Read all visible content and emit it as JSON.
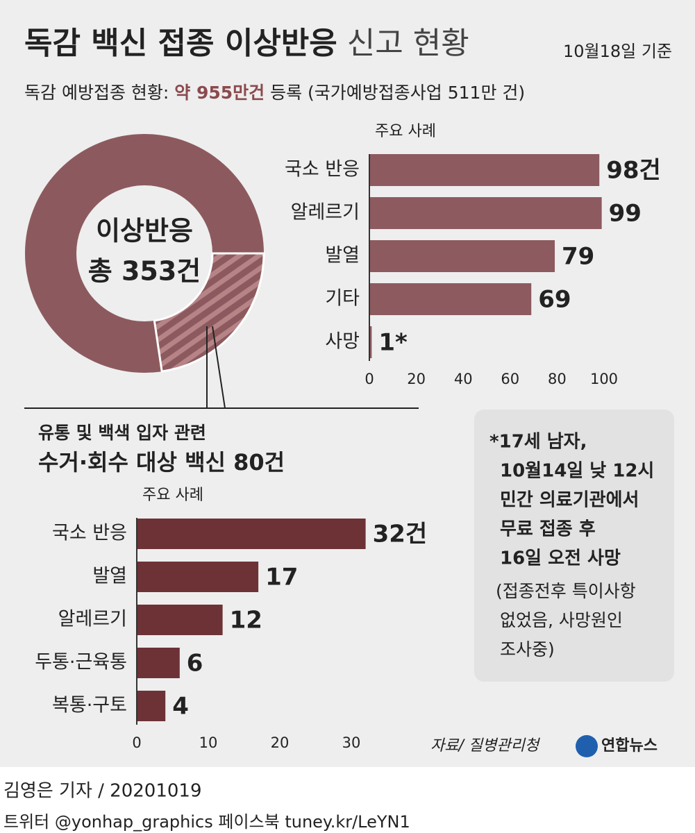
{
  "header": {
    "title_bold": "독감 백신 접종 이상반응",
    "title_light": "신고 현황",
    "date": "10월18일 기준",
    "subtitle_a": "독감 예방접종 현황: ",
    "subtitle_b": "약 955만건",
    "subtitle_c": " 등록 (국가예방접종사업 511만 건)"
  },
  "chart_data": [
    {
      "type": "donut",
      "center_label": [
        "이상반응",
        "총 353건"
      ],
      "total": 353,
      "highlight": 80,
      "color": "#8c5a5e",
      "highlight_color": "#b68386",
      "highlight_label": [
        "유통 및 백색 입자 관련",
        "수거·회수 대상 백신 80건"
      ]
    },
    {
      "type": "hbar",
      "axis_label": "주요 사례",
      "categories": [
        "국소 반응",
        "알레르기",
        "발열",
        "기타",
        "사망"
      ],
      "values": [
        98,
        99,
        79,
        69,
        1
      ],
      "value_labels": [
        "98건",
        "99",
        "79",
        "69",
        "1*"
      ],
      "xlim": [
        0,
        100
      ],
      "xticks": [
        0,
        20,
        40,
        60,
        80,
        100
      ],
      "color": "#8d5a5f"
    },
    {
      "type": "hbar",
      "axis_label": "주요 사례",
      "categories": [
        "국소 반응",
        "발열",
        "알레르기",
        "두통·근육통",
        "복통·구토"
      ],
      "values": [
        32,
        17,
        12,
        6,
        4
      ],
      "value_labels": [
        "32건",
        "17",
        "12",
        "6",
        "4"
      ],
      "xlim": [
        0,
        30
      ],
      "xticks": [
        0,
        10,
        20,
        30
      ],
      "color": "#6d3236"
    }
  ],
  "note": {
    "bold_lines": [
      "*17세 남자,",
      "10월14일 낮 12시",
      "민간 의료기관에서",
      "무료 접종 후",
      "16일 오전 사망"
    ],
    "lines": [
      "(접종전후 특이사항",
      "없었음, 사망원인",
      "조사중)"
    ]
  },
  "source": "자료/ 질병관리청",
  "logo": "연합뉴스",
  "footer": {
    "byline": "김영은 기자 / 20201019",
    "sns": "트위터 @yonhap_graphics  페이스북 tuney.kr/LeYN1"
  }
}
